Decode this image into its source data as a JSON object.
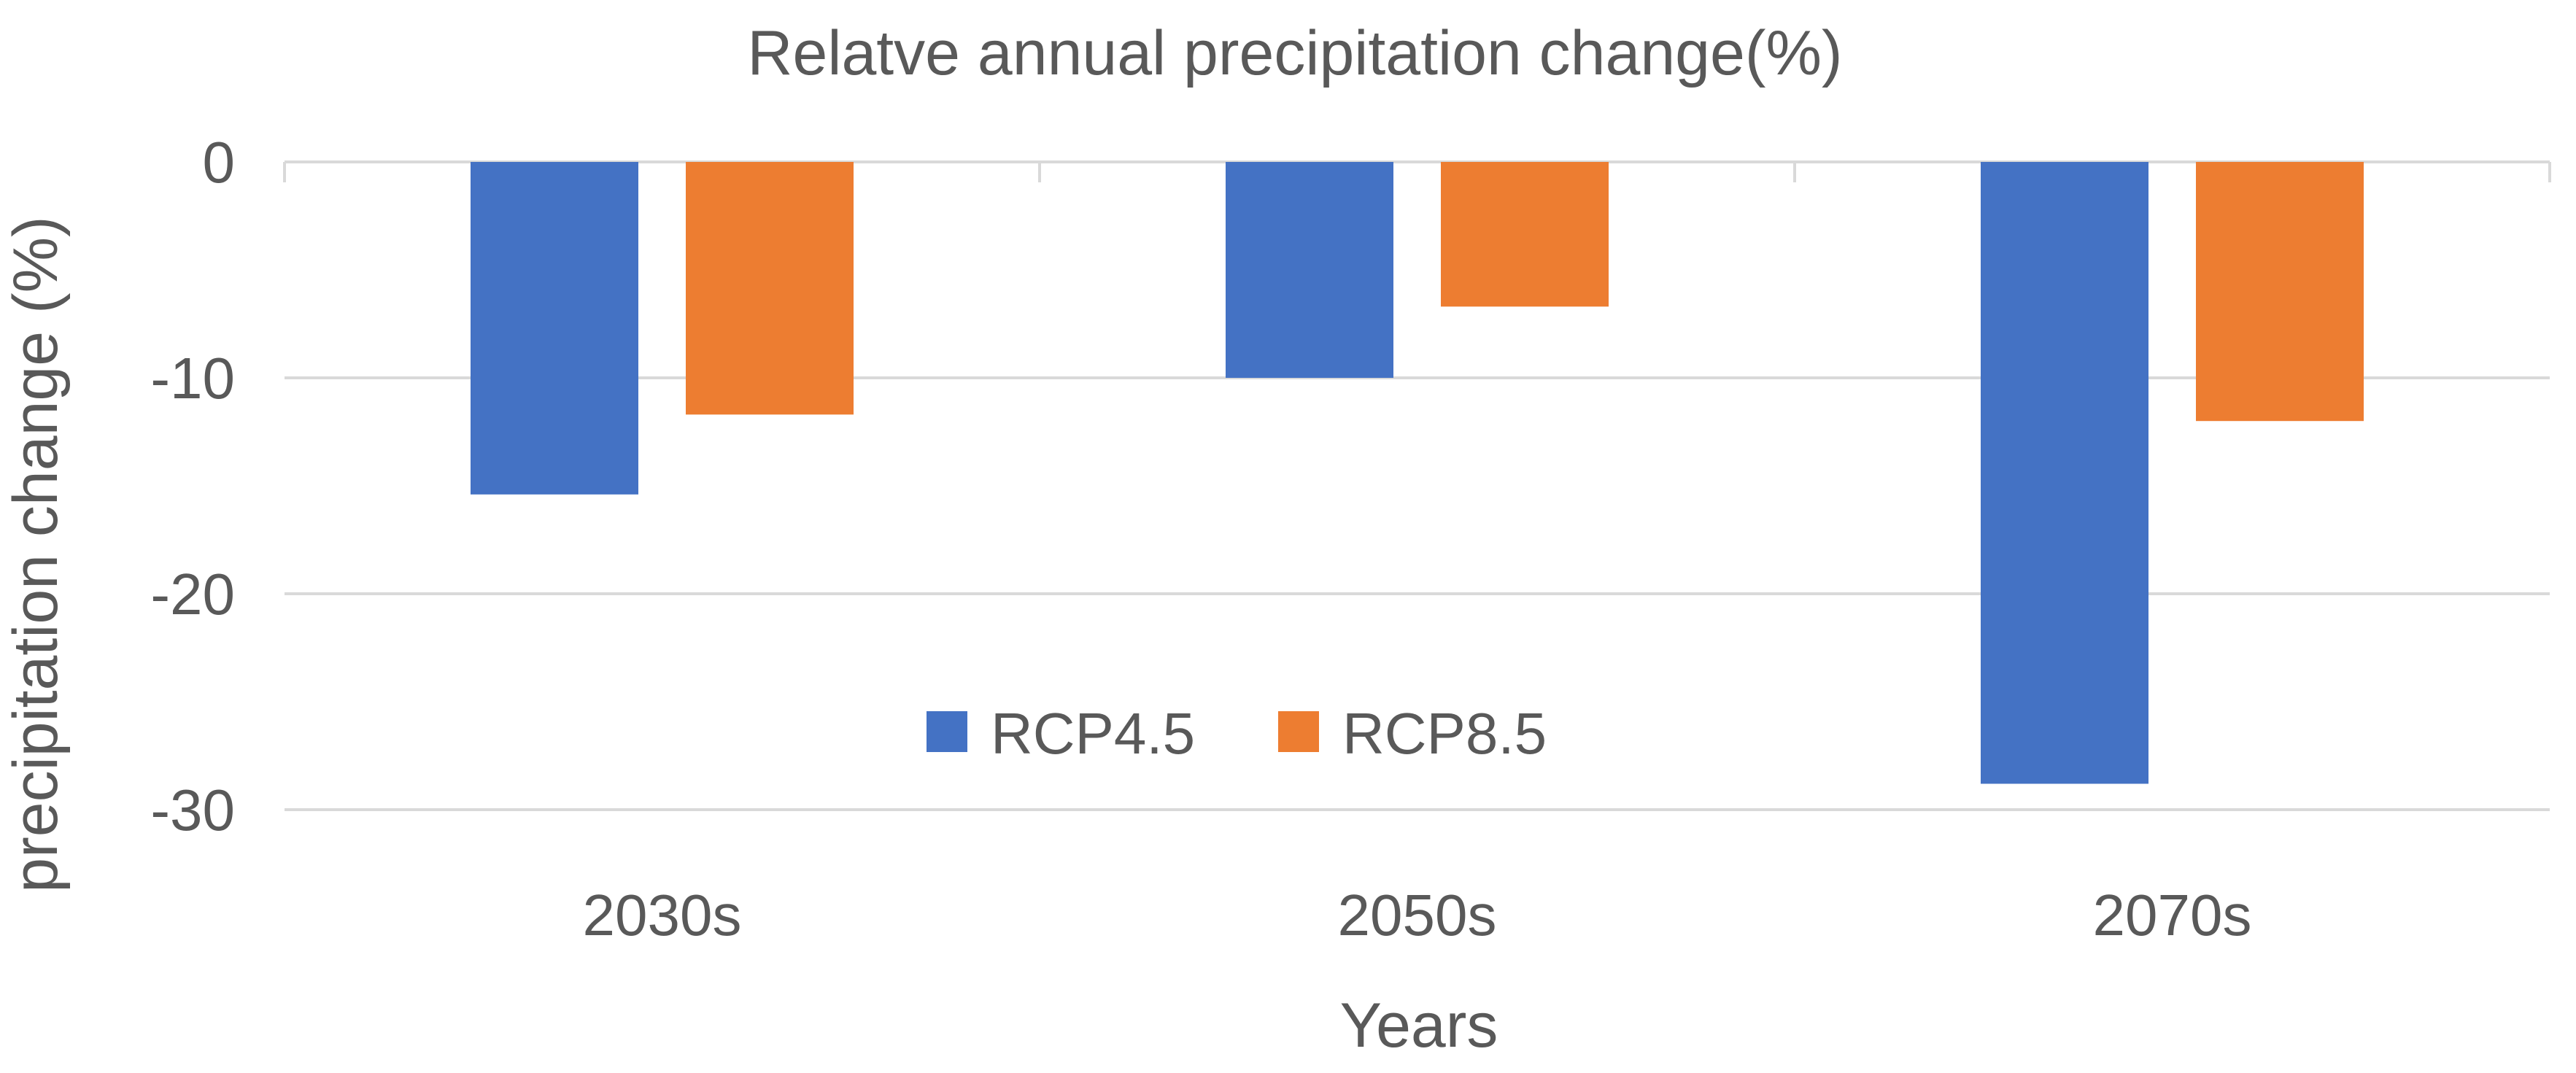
{
  "chart_data": {
    "type": "bar",
    "title": "Relatve annual precipitation change(%)",
    "xlabel": "Years",
    "ylabel": "precipitation change (%)",
    "categories": [
      "2030s",
      "2050s",
      "2070s"
    ],
    "series": [
      {
        "name": "RCP4.5",
        "color": "#4472C4",
        "values": [
          -15.4,
          -10.0,
          -28.8
        ]
      },
      {
        "name": "RCP8.5",
        "color": "#ED7D31",
        "values": [
          -11.7,
          -6.7,
          -12.0
        ]
      }
    ],
    "ylim": [
      -30,
      0
    ],
    "yticks": [
      0,
      -10,
      -20,
      -30
    ],
    "ytick_labels": [
      "0",
      "-10",
      "-20",
      "-30"
    ],
    "grid": true,
    "legend_position": "bottom-center-inside"
  }
}
